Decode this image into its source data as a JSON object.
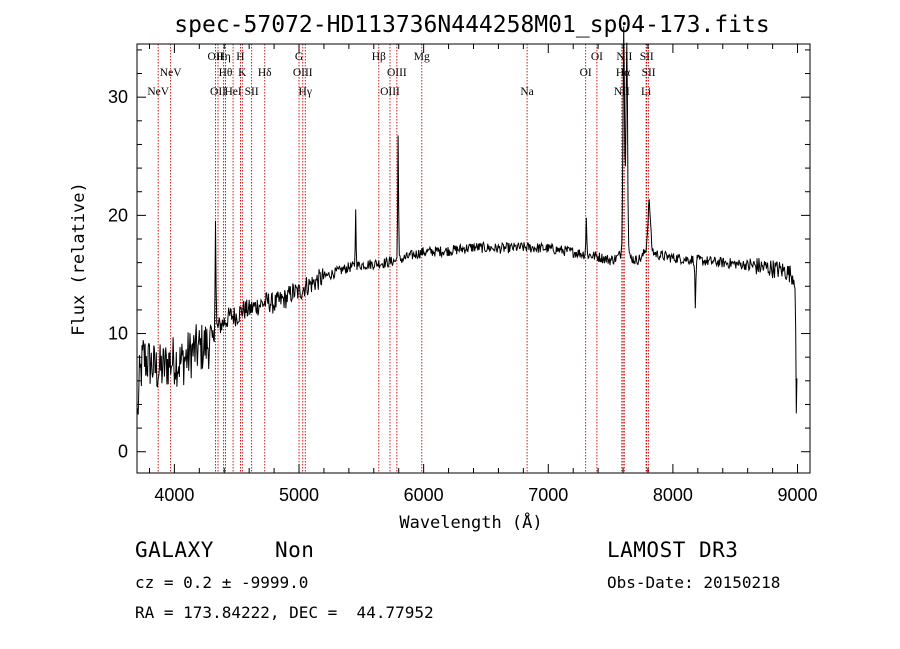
{
  "chart_data": {
    "type": "line",
    "title": "spec-57072-HD113736N444258M01_sp04-173.fits",
    "xlabel": "Wavelength (Å)",
    "ylabel": "Flux (relative)",
    "xlim": [
      3700,
      9100
    ],
    "ylim": [
      -1.8,
      34.5
    ],
    "xticks": [
      4000,
      5000,
      6000,
      7000,
      8000,
      9000
    ],
    "yticks": [
      0,
      10,
      20,
      30
    ],
    "grid": false,
    "spectrum_anchors": {
      "x": [
        3700,
        3720,
        3750,
        3800,
        3850,
        3900,
        3950,
        4000,
        4050,
        4100,
        4150,
        4200,
        4250,
        4300,
        4320,
        4350,
        4400,
        4450,
        4500,
        4550,
        4600,
        4650,
        4700,
        4750,
        4800,
        4850,
        4900,
        4950,
        5000,
        5050,
        5100,
        5150,
        5200,
        5300,
        5400,
        5500,
        5600,
        5700,
        5800,
        5900,
        6000,
        6200,
        6400,
        6600,
        6800,
        7000,
        7200,
        7400,
        7500,
        7550,
        7600,
        7650,
        7700,
        7750,
        7800,
        7850,
        7900,
        8000,
        8200,
        8400,
        8600,
        8800,
        8900,
        8950,
        8990,
        9000
      ],
      "y": [
        2,
        6,
        8,
        7.5,
        7,
        7,
        7.5,
        7.8,
        7.5,
        8,
        8.5,
        8.7,
        9,
        9.3,
        10,
        10.5,
        11,
        11.5,
        11.5,
        12,
        12,
        12.3,
        12.5,
        12.7,
        12.5,
        12.8,
        13,
        13.5,
        13.5,
        14,
        14.2,
        14.5,
        14.8,
        15.2,
        15.6,
        15.8,
        15.9,
        16,
        16.2,
        16.6,
        16.9,
        17,
        17.3,
        17.2,
        17.3,
        17.2,
        16.9,
        16.5,
        16.2,
        16.4,
        17,
        16.5,
        16.2,
        16.4,
        17.5,
        16.8,
        16.6,
        16.4,
        16.2,
        16,
        15.8,
        15.5,
        15.3,
        15,
        14.5,
        6
      ]
    },
    "spikes": [
      {
        "x": 4330,
        "y": 19.5
      },
      {
        "x": 5455,
        "y": 20.3
      },
      {
        "x": 5795,
        "y": 26.7
      },
      {
        "x": 7305,
        "y": 19.8
      },
      {
        "x": 7605,
        "y": 34
      },
      {
        "x": 7630,
        "y": 33
      },
      {
        "x": 7810,
        "y": 21
      },
      {
        "x": 8180,
        "y": 12
      },
      {
        "x": 8990,
        "y": 2.5
      }
    ],
    "spectral_lines": [
      {
        "label": "NeV",
        "x": 3870,
        "row": 3
      },
      {
        "label": "NeV",
        "x": 3970,
        "row": 2
      },
      {
        "label": "OII",
        "x": 4330,
        "row": 1
      },
      {
        "label": "OII",
        "x": 4350,
        "row": 3
      },
      {
        "label": "Hη",
        "x": 4395,
        "row": 1
      },
      {
        "label": "Hθ",
        "x": 4410,
        "row": 2
      },
      {
        "label": "HeI",
        "x": 4471,
        "row": 3
      },
      {
        "label": "H",
        "x": 4530,
        "row": 1
      },
      {
        "label": "K",
        "x": 4545,
        "row": 2
      },
      {
        "label": "SII",
        "x": 4620,
        "row": 3
      },
      {
        "label": "Hδ",
        "x": 4725,
        "row": 2
      },
      {
        "label": "G",
        "x": 5000,
        "row": 1
      },
      {
        "label": "OIII",
        "x": 5030,
        "row": 2
      },
      {
        "label": "Hγ",
        "x": 5050,
        "row": 3
      },
      {
        "label": "Hβ",
        "x": 5640,
        "row": 1
      },
      {
        "label": "OIII",
        "x": 5785,
        "row": 2
      },
      {
        "label": "OIII",
        "x": 5730,
        "row": 3
      },
      {
        "label": "Mg",
        "x": 5985,
        "row": 1
      },
      {
        "label": "Na",
        "x": 6830,
        "row": 3
      },
      {
        "label": "OI",
        "x": 7390,
        "row": 1
      },
      {
        "label": "OI",
        "x": 7300,
        "row": 2
      },
      {
        "label": "NII",
        "x": 7610,
        "row": 1
      },
      {
        "label": "Hα",
        "x": 7600,
        "row": 2
      },
      {
        "label": "NII",
        "x": 7590,
        "row": 3
      },
      {
        "label": "SII",
        "x": 7790,
        "row": 1
      },
      {
        "label": "SII",
        "x": 7805,
        "row": 2
      },
      {
        "label": "Li",
        "x": 7785,
        "row": 3
      }
    ],
    "line_color": "#cc0000",
    "spectrum_color": "#000000"
  },
  "info": {
    "object_class": "GALAXY",
    "subclass": "Non",
    "survey": "LAMOST DR3",
    "cz_line": "cz = 0.2 ± -9999.0",
    "obs_date_line": "Obs-Date: 20150218",
    "coords_line": "RA = 173.84222, DEC =  44.77952"
  }
}
